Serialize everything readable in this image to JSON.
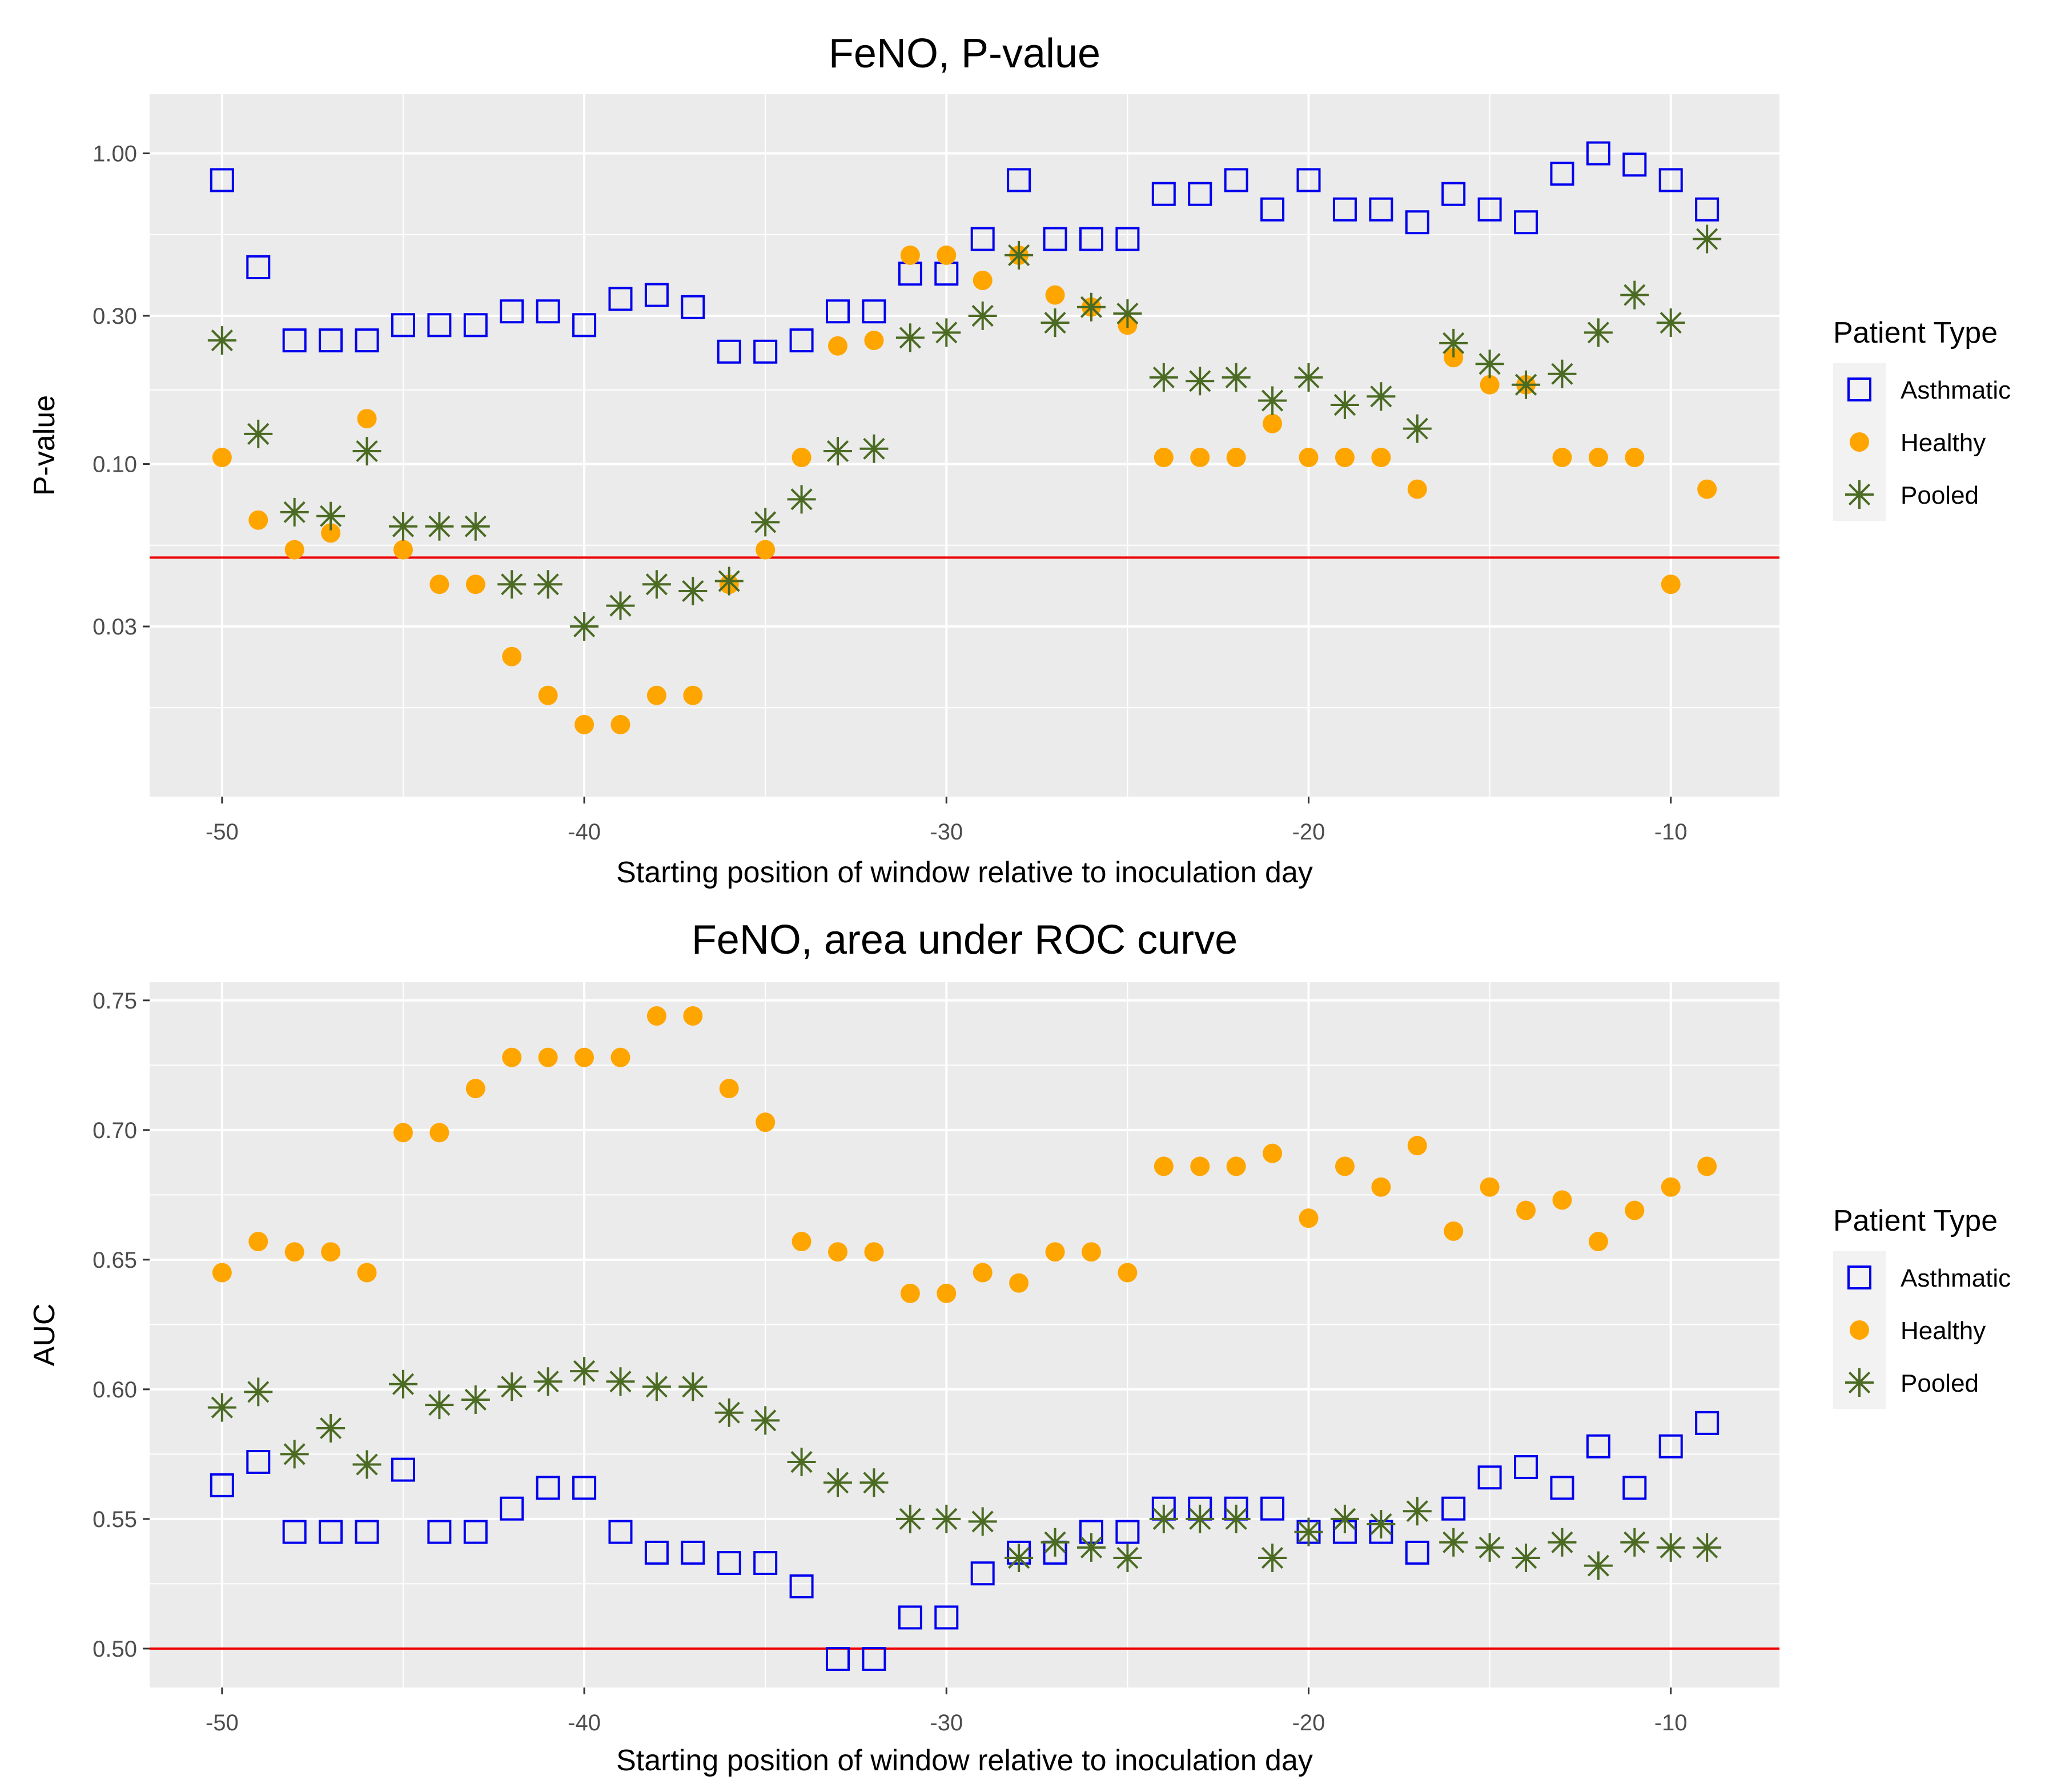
{
  "colors": {
    "asthmatic": "#0000ee",
    "healthy": "#ffa500",
    "pooled": "#4b6b23",
    "threshold": "#ee0000",
    "panel": "#ebebeb",
    "grid": "#ffffff"
  },
  "chart_data": [
    {
      "type": "scatter",
      "title": "FeNO, P-value",
      "xlabel": "Starting position of window relative to inoculation day",
      "ylabel": "P-value",
      "yscale": "log",
      "xlim": [
        -52,
        -7
      ],
      "ylim": [
        0.0085,
        1.55
      ],
      "xticks": [
        -50,
        -40,
        -30,
        -20,
        -10
      ],
      "xtick_labels": [
        "-50",
        "-40",
        "-30",
        "-20",
        "-10"
      ],
      "yticks": [
        0.03,
        0.1,
        0.3,
        1.0
      ],
      "ytick_labels": [
        "0.03",
        "0.10",
        "0.30",
        "1.00"
      ],
      "reference_line": 0.05,
      "legend": {
        "title": "Patient Type",
        "entries": [
          "Asthmatic",
          "Healthy",
          "Pooled"
        ]
      },
      "x": [
        -50,
        -49,
        -48,
        -47,
        -46,
        -45,
        -44,
        -43,
        -42,
        -41,
        -40,
        -39,
        -38,
        -37,
        -36,
        -35,
        -34,
        -33,
        -32,
        -31,
        -30,
        -29,
        -28,
        -27,
        -26,
        -25,
        -24,
        -23,
        -22,
        -21,
        -20,
        -19,
        -18,
        -17,
        -16,
        -15,
        -14,
        -13,
        -12,
        -11,
        -10,
        -9
      ],
      "series": [
        {
          "name": "Asthmatic",
          "values": [
            0.82,
            0.43,
            0.25,
            0.25,
            0.25,
            0.28,
            0.28,
            0.28,
            0.31,
            0.31,
            0.28,
            0.34,
            0.35,
            0.32,
            0.23,
            0.23,
            0.25,
            0.31,
            0.31,
            0.41,
            0.41,
            0.53,
            0.82,
            0.53,
            0.53,
            0.53,
            0.74,
            0.74,
            0.82,
            0.66,
            0.82,
            0.66,
            0.66,
            0.6,
            0.74,
            0.66,
            0.6,
            0.86,
            1.0,
            0.92,
            0.82,
            0.66
          ]
        },
        {
          "name": "Healthy",
          "values": [
            0.105,
            0.066,
            0.053,
            0.06,
            0.14,
            0.053,
            0.041,
            0.041,
            0.024,
            0.018,
            0.0145,
            0.0145,
            0.018,
            0.018,
            0.041,
            0.053,
            0.105,
            0.24,
            0.25,
            0.47,
            0.47,
            0.39,
            0.47,
            0.35,
            0.32,
            0.28,
            0.105,
            0.105,
            0.105,
            0.135,
            0.105,
            0.105,
            0.105,
            0.083,
            0.22,
            0.18,
            0.18,
            0.105,
            0.105,
            0.105,
            0.041,
            0.083
          ]
        },
        {
          "name": "Pooled",
          "values": [
            0.25,
            0.125,
            0.07,
            0.068,
            0.11,
            0.063,
            0.063,
            0.063,
            0.041,
            0.041,
            0.03,
            0.035,
            0.041,
            0.039,
            0.042,
            0.065,
            0.077,
            0.11,
            0.112,
            0.255,
            0.265,
            0.3,
            0.47,
            0.285,
            0.32,
            0.305,
            0.19,
            0.185,
            0.19,
            0.16,
            0.19,
            0.155,
            0.165,
            0.13,
            0.245,
            0.21,
            0.18,
            0.195,
            0.265,
            0.35,
            0.285,
            0.53
          ]
        }
      ]
    },
    {
      "type": "scatter",
      "title": "FeNO, area under ROC curve",
      "xlabel": "Starting position of window relative to inoculation day",
      "ylabel": "AUC",
      "yscale": "linear",
      "xlim": [
        -52,
        -7
      ],
      "ylim": [
        0.485,
        0.757
      ],
      "xticks": [
        -50,
        -40,
        -30,
        -20,
        -10
      ],
      "xtick_labels": [
        "-50",
        "-40",
        "-30",
        "-20",
        "-10"
      ],
      "yticks": [
        0.5,
        0.55,
        0.6,
        0.65,
        0.7,
        0.75
      ],
      "ytick_labels": [
        "0.50",
        "0.55",
        "0.60",
        "0.65",
        "0.70",
        "0.75"
      ],
      "reference_line": 0.5,
      "legend": {
        "title": "Patient Type",
        "entries": [
          "Asthmatic",
          "Healthy",
          "Pooled"
        ]
      },
      "x": [
        -50,
        -49,
        -48,
        -47,
        -46,
        -45,
        -44,
        -43,
        -42,
        -41,
        -40,
        -39,
        -38,
        -37,
        -36,
        -35,
        -34,
        -33,
        -32,
        -31,
        -30,
        -29,
        -28,
        -27,
        -26,
        -25,
        -24,
        -23,
        -22,
        -21,
        -20,
        -19,
        -18,
        -17,
        -16,
        -15,
        -14,
        -13,
        -12,
        -11,
        -10,
        -9
      ],
      "series": [
        {
          "name": "Asthmatic",
          "values": [
            0.563,
            0.572,
            0.545,
            0.545,
            0.545,
            0.569,
            0.545,
            0.545,
            0.554,
            0.562,
            0.562,
            0.545,
            0.537,
            0.537,
            0.533,
            0.533,
            0.524,
            0.496,
            0.496,
            0.512,
            0.512,
            0.529,
            0.537,
            0.537,
            0.545,
            0.545,
            0.554,
            0.554,
            0.554,
            0.554,
            0.545,
            0.545,
            0.545,
            0.537,
            0.554,
            0.566,
            0.57,
            0.562,
            0.578,
            0.562,
            0.578,
            0.587
          ]
        },
        {
          "name": "Healthy",
          "values": [
            0.645,
            0.657,
            0.653,
            0.653,
            0.645,
            0.699,
            0.699,
            0.716,
            0.728,
            0.728,
            0.728,
            0.728,
            0.744,
            0.744,
            0.716,
            0.703,
            0.657,
            0.653,
            0.653,
            0.637,
            0.637,
            0.645,
            0.641,
            0.653,
            0.653,
            0.645,
            0.686,
            0.686,
            0.686,
            0.691,
            0.666,
            0.686,
            0.678,
            0.694,
            0.661,
            0.678,
            0.669,
            0.673,
            0.657,
            0.669,
            0.678,
            0.686
          ]
        },
        {
          "name": "Pooled",
          "values": [
            0.593,
            0.599,
            0.575,
            0.585,
            0.571,
            0.602,
            0.594,
            0.596,
            0.601,
            0.603,
            0.607,
            0.603,
            0.601,
            0.601,
            0.591,
            0.588,
            0.572,
            0.564,
            0.564,
            0.55,
            0.55,
            0.549,
            0.535,
            0.541,
            0.539,
            0.535,
            0.55,
            0.55,
            0.55,
            0.535,
            0.545,
            0.55,
            0.548,
            0.553,
            0.541,
            0.539,
            0.535,
            0.541,
            0.532,
            0.541,
            0.539,
            0.539
          ]
        }
      ]
    }
  ]
}
